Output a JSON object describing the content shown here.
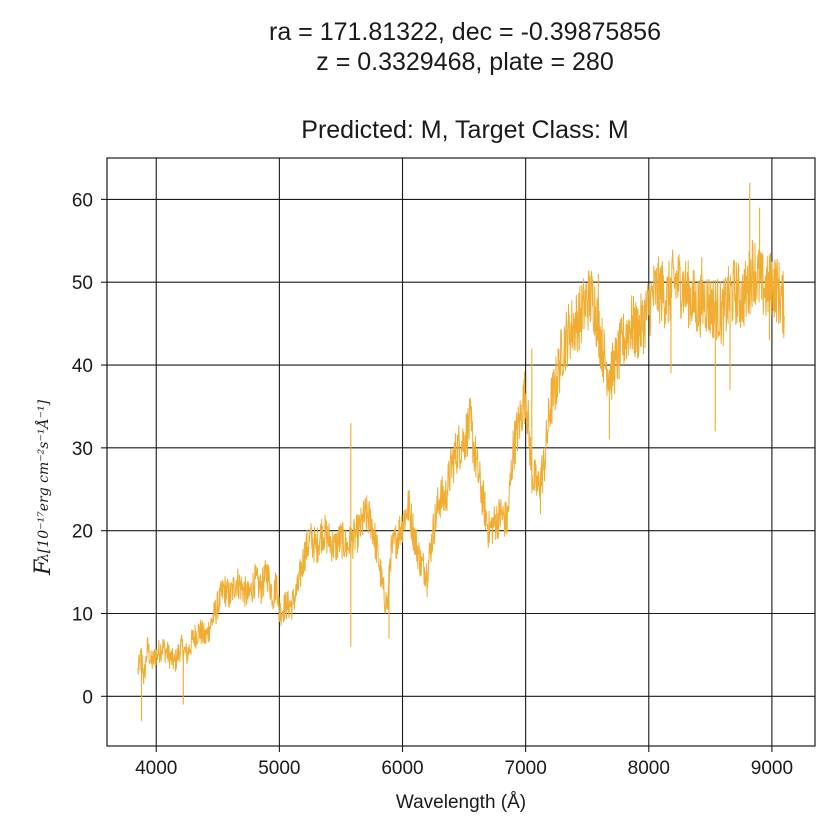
{
  "title_lines": [
    "ra = 171.81322, dec = -0.39875856",
    "z = 0.3329468, plate = 280",
    "Predicted: M, Target Class: M"
  ],
  "chart_data": {
    "type": "line",
    "xlabel": "Wavelength (Å)",
    "ylabel_main": "F",
    "ylabel_sub": "λ[10⁻¹⁷erg cm⁻²s⁻¹Å⁻¹]",
    "xlim": [
      3600,
      9350
    ],
    "ylim": [
      -6,
      65
    ],
    "xticks": [
      4000,
      5000,
      6000,
      7000,
      8000,
      9000
    ],
    "yticks": [
      0,
      10,
      20,
      30,
      40,
      50,
      60
    ],
    "grid": true,
    "line_color": "#f0ad32",
    "series": [
      {
        "x": [
          3850,
          3880,
          3900,
          3930,
          3960,
          4000,
          4050,
          4100,
          4150,
          4200,
          4250,
          4300,
          4350,
          4400,
          4450,
          4500,
          4550,
          4600,
          4650,
          4700,
          4750,
          4800,
          4850,
          4900,
          4950,
          4980,
          5000,
          5050,
          5100,
          5150,
          5200,
          5250,
          5300,
          5350,
          5400,
          5450,
          5500,
          5550,
          5600,
          5650,
          5700,
          5750,
          5800,
          5850,
          5880,
          5900,
          5950,
          6000,
          6050,
          6100,
          6150,
          6200,
          6250,
          6300,
          6350,
          6400,
          6450,
          6500,
          6550,
          6600,
          6650,
          6700,
          6750,
          6800,
          6850,
          6900,
          6950,
          7000,
          7050,
          7100,
          7150,
          7200,
          7250,
          7300,
          7350,
          7400,
          7450,
          7500,
          7550,
          7600,
          7650,
          7700,
          7750,
          7800,
          7850,
          7900,
          7950,
          8000,
          8050,
          8100,
          8150,
          8200,
          8250,
          8300,
          8350,
          8400,
          8450,
          8500,
          8550,
          8600,
          8650,
          8700,
          8750,
          8800,
          8850,
          8900,
          8950,
          9000,
          9050,
          9100
        ],
        "y": [
          3,
          5,
          2,
          6,
          4,
          5,
          6,
          5,
          4,
          6,
          5,
          7,
          8,
          7,
          9,
          11,
          13,
          12,
          14,
          13,
          12,
          14,
          13,
          15,
          12,
          14,
          10,
          11,
          11,
          13,
          17,
          19,
          18,
          20,
          19,
          18,
          19,
          18,
          19,
          20,
          22,
          21,
          17,
          12,
          11,
          17,
          19,
          21,
          23,
          19,
          16,
          15,
          20,
          24,
          24,
          28,
          30,
          31,
          33,
          28,
          24,
          20,
          21,
          22,
          21,
          30,
          33,
          37,
          27,
          25,
          28,
          35,
          38,
          42,
          44,
          45,
          46,
          48,
          48,
          44,
          40,
          39,
          41,
          43,
          45,
          44,
          45,
          47,
          49,
          49,
          48,
          50,
          50,
          49,
          48,
          47,
          48,
          47,
          47,
          46,
          48,
          49,
          48,
          49,
          52,
          50,
          49,
          50,
          49,
          47
        ]
      }
    ],
    "spikes": [
      {
        "x": 3880,
        "y": -3
      },
      {
        "x": 4220,
        "y": -1
      },
      {
        "x": 5580,
        "y": 33
      },
      {
        "x": 5580,
        "y": 6
      },
      {
        "x": 5890,
        "y": 7
      },
      {
        "x": 6200,
        "y": 12
      },
      {
        "x": 6560,
        "y": 35
      },
      {
        "x": 6780,
        "y": 20
      },
      {
        "x": 7050,
        "y": 42
      },
      {
        "x": 7120,
        "y": 22
      },
      {
        "x": 7590,
        "y": 51
      },
      {
        "x": 7680,
        "y": 31
      },
      {
        "x": 8180,
        "y": 39
      },
      {
        "x": 8430,
        "y": 53
      },
      {
        "x": 8540,
        "y": 32
      },
      {
        "x": 8660,
        "y": 37
      },
      {
        "x": 8820,
        "y": 62
      },
      {
        "x": 8900,
        "y": 59
      },
      {
        "x": 8980,
        "y": 43
      }
    ]
  }
}
